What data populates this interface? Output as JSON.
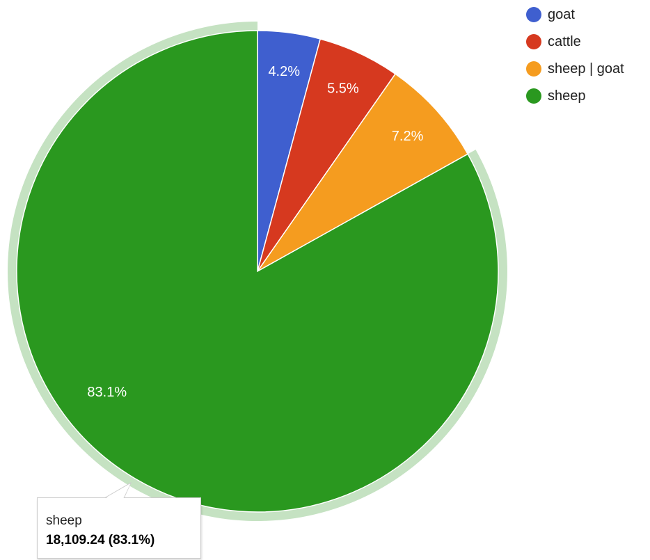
{
  "chart_data": {
    "type": "pie",
    "slices": [
      {
        "label": "goat",
        "percent_label": "4.2%",
        "share": 0.042,
        "color": "#3f5fcf"
      },
      {
        "label": "cattle",
        "percent_label": "5.5%",
        "share": 0.055,
        "color": "#d6391f"
      },
      {
        "label": "sheep | goat",
        "percent_label": "7.2%",
        "share": 0.072,
        "color": "#f59c1f"
      },
      {
        "label": "sheep",
        "percent_label": "83.1%",
        "share": 0.831,
        "color": "#2a981f"
      }
    ],
    "highlighted_slice": "sheep",
    "legend_position": "top-right",
    "tooltip": {
      "name": "sheep",
      "value": "18,109.24 (83.1%)"
    }
  }
}
